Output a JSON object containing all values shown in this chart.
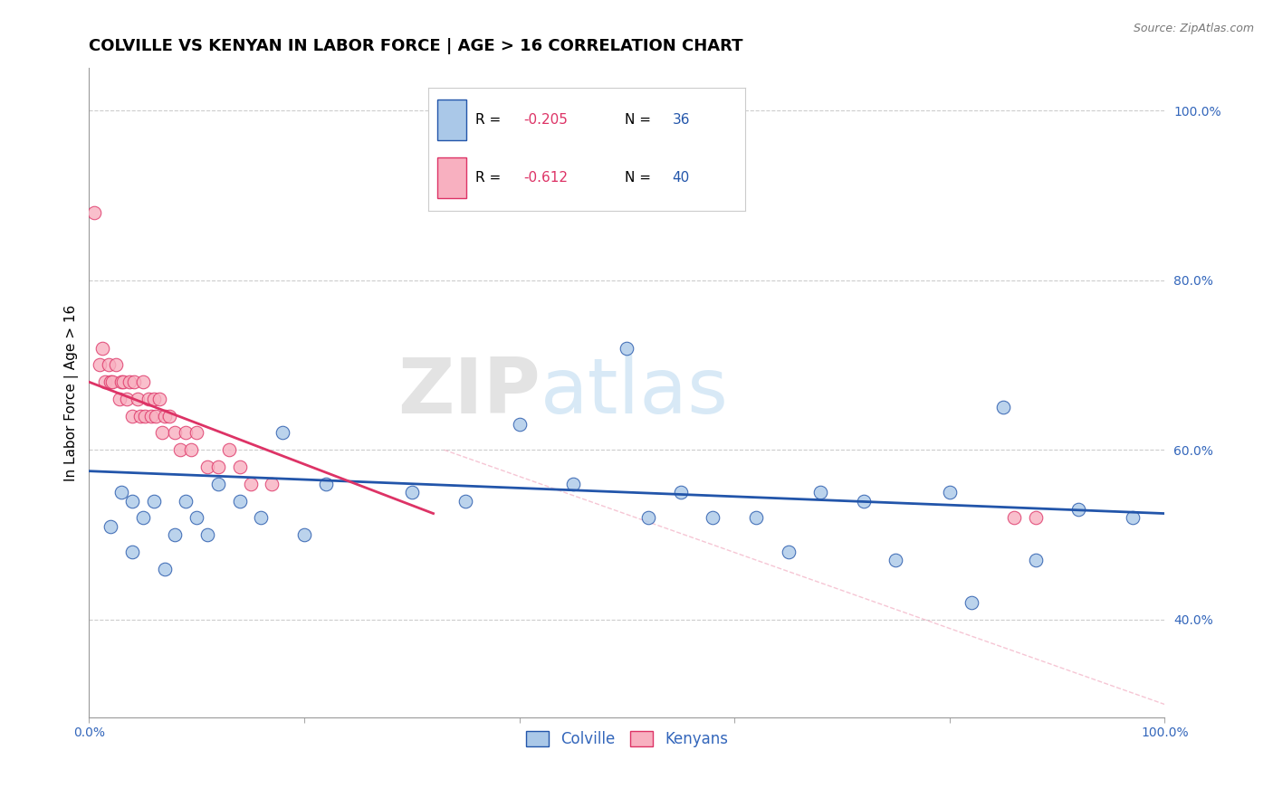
{
  "title": "COLVILLE VS KENYAN IN LABOR FORCE | AGE > 16 CORRELATION CHART",
  "source_text": "Source: ZipAtlas.com",
  "ylabel": "In Labor Force | Age > 16",
  "xlim": [
    0.0,
    1.0
  ],
  "ylim": [
    0.285,
    1.05
  ],
  "yticks": [
    0.4,
    0.6,
    0.8,
    1.0
  ],
  "ytick_labels": [
    "40.0%",
    "60.0%",
    "80.0%",
    "100.0%"
  ],
  "xticks": [
    0.0,
    0.2,
    0.4,
    0.6,
    0.8,
    1.0
  ],
  "xtick_labels": [
    "0.0%",
    "",
    "",
    "",
    "",
    "100.0%"
  ],
  "blue_R": -0.205,
  "blue_N": 36,
  "pink_R": -0.612,
  "pink_N": 40,
  "blue_color": "#aac8e8",
  "pink_color": "#f8b0c0",
  "blue_line_color": "#2255aa",
  "pink_line_color": "#dd3366",
  "legend_blue_label": "Colville",
  "legend_pink_label": "Kenyans",
  "blue_scatter_x": [
    0.02,
    0.03,
    0.04,
    0.04,
    0.05,
    0.06,
    0.07,
    0.08,
    0.09,
    0.1,
    0.11,
    0.12,
    0.14,
    0.16,
    0.18,
    0.2,
    0.22,
    0.3,
    0.35,
    0.4,
    0.45,
    0.5,
    0.52,
    0.55,
    0.58,
    0.62,
    0.65,
    0.68,
    0.72,
    0.75,
    0.8,
    0.82,
    0.85,
    0.88,
    0.92,
    0.97
  ],
  "blue_scatter_y": [
    0.51,
    0.55,
    0.48,
    0.54,
    0.52,
    0.54,
    0.46,
    0.5,
    0.54,
    0.52,
    0.5,
    0.56,
    0.54,
    0.52,
    0.62,
    0.5,
    0.56,
    0.55,
    0.54,
    0.63,
    0.56,
    0.72,
    0.52,
    0.55,
    0.52,
    0.52,
    0.48,
    0.55,
    0.54,
    0.47,
    0.55,
    0.42,
    0.65,
    0.47,
    0.53,
    0.52
  ],
  "pink_scatter_x": [
    0.005,
    0.01,
    0.012,
    0.015,
    0.018,
    0.02,
    0.022,
    0.025,
    0.028,
    0.03,
    0.032,
    0.035,
    0.038,
    0.04,
    0.042,
    0.045,
    0.048,
    0.05,
    0.052,
    0.055,
    0.058,
    0.06,
    0.062,
    0.065,
    0.068,
    0.07,
    0.075,
    0.08,
    0.085,
    0.09,
    0.095,
    0.1,
    0.11,
    0.12,
    0.13,
    0.14,
    0.15,
    0.17,
    0.86,
    0.88
  ],
  "pink_scatter_y": [
    0.88,
    0.7,
    0.72,
    0.68,
    0.7,
    0.68,
    0.68,
    0.7,
    0.66,
    0.68,
    0.68,
    0.66,
    0.68,
    0.64,
    0.68,
    0.66,
    0.64,
    0.68,
    0.64,
    0.66,
    0.64,
    0.66,
    0.64,
    0.66,
    0.62,
    0.64,
    0.64,
    0.62,
    0.6,
    0.62,
    0.6,
    0.62,
    0.58,
    0.58,
    0.6,
    0.58,
    0.56,
    0.56,
    0.52,
    0.52
  ],
  "blue_line_x0": 0.0,
  "blue_line_x1": 1.0,
  "blue_line_y0": 0.575,
  "blue_line_y1": 0.525,
  "pink_line_x0": 0.0,
  "pink_line_x1": 0.32,
  "pink_line_y0": 0.68,
  "pink_line_y1": 0.525,
  "dash_line_x0": 0.33,
  "dash_line_x1": 1.0,
  "dash_line_y0": 0.6,
  "dash_line_y1": 0.3,
  "watermark_zip": "ZIP",
  "watermark_atlas": "atlas",
  "title_fontsize": 13,
  "axis_label_fontsize": 11,
  "tick_fontsize": 10,
  "legend_fontsize": 11
}
